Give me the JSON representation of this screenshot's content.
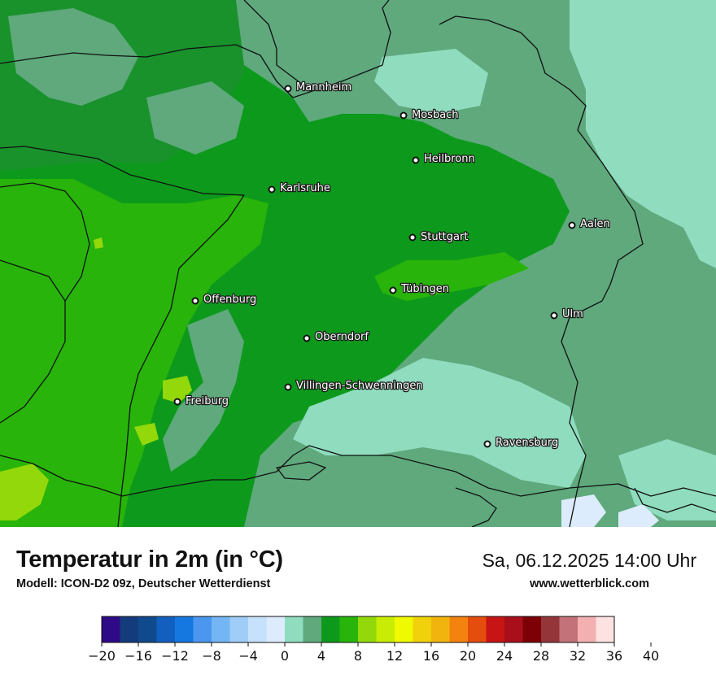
{
  "map": {
    "title": "Temperatur in 2m (in °C)",
    "model": "Modell: ICON-D2 09z, Deutscher Wetterdienst",
    "datetime": "Sa, 06.12.2025 14:00 Uhr",
    "website": "www.wetterblick.com",
    "cities": [
      {
        "name": "Mannheim"
      },
      {
        "name": "Mosbach"
      },
      {
        "name": "Heilbronn"
      },
      {
        "name": "Karlsruhe"
      },
      {
        "name": "Aalen"
      },
      {
        "name": "Stuttgart"
      },
      {
        "name": "Offenburg"
      },
      {
        "name": "Tübingen"
      },
      {
        "name": "Ulm"
      },
      {
        "name": "Oberndorf"
      },
      {
        "name": "Villingen-Schwenningen"
      },
      {
        "name": "Freiburg"
      },
      {
        "name": "Ravensburg"
      }
    ]
  },
  "legend": {
    "unit": "°C",
    "colors": [
      "#2e0a87",
      "#143c7c",
      "#0f4a8c",
      "#135fbf",
      "#1578e0",
      "#4b97f0",
      "#74b5f6",
      "#9fcdf8",
      "#c6e1fb",
      "#dcecfd",
      "#8fdcbf",
      "#5fa97d",
      "#0d9a1c",
      "#28b40a",
      "#93d80b",
      "#c8ec04",
      "#f1f901",
      "#f1d10c",
      "#f1b40f",
      "#f3820f",
      "#e54d0f",
      "#c71414",
      "#a90f1a",
      "#7e0007",
      "#94353a",
      "#c47279",
      "#f3b0b0",
      "#fde2e2"
    ],
    "ticks": [
      "−20",
      "−16",
      "−12",
      "−8",
      "−4",
      "0",
      "4",
      "8",
      "12",
      "16",
      "20",
      "24",
      "28",
      "32",
      "36",
      "40"
    ]
  }
}
